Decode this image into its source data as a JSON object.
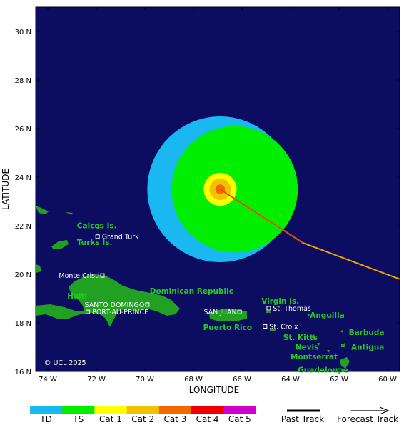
{
  "axes": {
    "x_title": "LONGITUDE",
    "y_title": "LATITUDE",
    "lon_ticks": [
      {
        "value": -74,
        "label": "74 W"
      },
      {
        "value": -72,
        "label": "72 W"
      },
      {
        "value": -70,
        "label": "70 W"
      },
      {
        "value": -68,
        "label": "68 W"
      },
      {
        "value": -66,
        "label": "66 W"
      },
      {
        "value": -64,
        "label": "64 W"
      },
      {
        "value": -62,
        "label": "62 W"
      },
      {
        "value": -60,
        "label": "60 W"
      }
    ],
    "lat_ticks": [
      {
        "value": 30,
        "label": "30 N"
      },
      {
        "value": 28,
        "label": "28 N"
      },
      {
        "value": 26,
        "label": "26 N"
      },
      {
        "value": 24,
        "label": "24 N"
      },
      {
        "value": 22,
        "label": "22 N"
      },
      {
        "value": 20,
        "label": "20 N"
      },
      {
        "value": 18,
        "label": "18 N"
      },
      {
        "value": 16,
        "label": "16 N"
      }
    ]
  },
  "map": {
    "lon_range": [
      -74.5,
      -59.5
    ],
    "lat_range": [
      16,
      31
    ],
    "background": "#0c0c60",
    "land_color": "#22a022",
    "copyright": "© UCL 2025"
  },
  "storm": {
    "center": {
      "lon": -66.9,
      "lat": 23.5
    },
    "wind_field": [
      {
        "category": "TD",
        "radius_deg": 3.0,
        "dlon": 0.0,
        "dlat": 0.0
      },
      {
        "category": "TS",
        "radius_deg": 2.6,
        "dlon": 0.6,
        "dlat": 0.0
      },
      {
        "category": "Cat 1",
        "radius_deg": 0.68,
        "dlon": 0.0,
        "dlat": 0.0
      },
      {
        "category": "Cat 2",
        "radius_deg": 0.44,
        "dlon": 0.0,
        "dlat": 0.0
      },
      {
        "category": "Cat 3",
        "radius_deg": 0.2,
        "dlon": 0.0,
        "dlat": 0.0
      }
    ],
    "track": [
      {
        "lon": -59.5,
        "lat": 19.8
      },
      {
        "lon": -63.5,
        "lat": 21.3
      },
      {
        "lon": -66.9,
        "lat": 23.5
      }
    ]
  },
  "places": {
    "green_labels": [
      {
        "text": "Caicos Is.",
        "lon": -72.8,
        "lat": 21.9
      },
      {
        "text": "Turks Is.",
        "lon": -72.8,
        "lat": 21.2
      },
      {
        "text": "Haiti",
        "lon": -73.2,
        "lat": 19.0
      },
      {
        "text": "Dominican Republic",
        "lon": -69.8,
        "lat": 19.2
      },
      {
        "text": "Virgin Is.",
        "lon": -65.2,
        "lat": 18.8
      },
      {
        "text": "Anguilla",
        "lon": -63.2,
        "lat": 18.2
      },
      {
        "text": "Puerto Rico",
        "lon": -67.6,
        "lat": 17.7
      },
      {
        "text": "St. Kitts",
        "lon": -64.3,
        "lat": 17.3
      },
      {
        "text": "Barbuda",
        "lon": -61.6,
        "lat": 17.5
      },
      {
        "text": "Nevis",
        "lon": -63.8,
        "lat": 16.9
      },
      {
        "text": "Antigua",
        "lon": -61.5,
        "lat": 16.9
      },
      {
        "text": "Montserrat",
        "lon": -64.0,
        "lat": 16.5
      },
      {
        "text": "Guadeloupe",
        "lon": -63.7,
        "lat": 15.95
      }
    ],
    "cities": [
      {
        "text": "Grand Turk",
        "lon": -71.95,
        "lat": 21.45,
        "anchor": "start",
        "marker": "left"
      },
      {
        "text": "Monte Cristi",
        "lon": -71.75,
        "lat": 19.85,
        "anchor": "end",
        "marker": "right"
      },
      {
        "text": "SANTO DOMINGO",
        "lon": -69.9,
        "lat": 18.65,
        "anchor": "end",
        "marker": "right"
      },
      {
        "text": "PORT-AU-PRINCE",
        "lon": -72.35,
        "lat": 18.35,
        "anchor": "start",
        "marker": "left"
      },
      {
        "text": "SAN JUAN",
        "lon": -66.1,
        "lat": 18.35,
        "anchor": "end",
        "marker": "right"
      },
      {
        "text": "St. Thomas",
        "lon": -64.9,
        "lat": 18.5,
        "anchor": "start",
        "marker": "left"
      },
      {
        "text": "St. Croix",
        "lon": -65.05,
        "lat": 17.75,
        "anchor": "start",
        "marker": "left"
      }
    ]
  },
  "legend": {
    "categories": [
      {
        "label": "TD",
        "color": "#1ab8f0"
      },
      {
        "label": "TS",
        "color": "#00ee00"
      },
      {
        "label": "Cat 1",
        "color": "#ffff00"
      },
      {
        "label": "Cat 2",
        "color": "#f2c200"
      },
      {
        "label": "Cat 3",
        "color": "#f06a00"
      },
      {
        "label": "Cat 4",
        "color": "#ee0000"
      },
      {
        "label": "Cat 5",
        "color": "#cc00cc"
      }
    ],
    "past_track_label": "Past Track",
    "forecast_track_label": "Forecast Track"
  },
  "colors": {
    "track_orange": "#f0a000",
    "track_red": "#e04010"
  }
}
